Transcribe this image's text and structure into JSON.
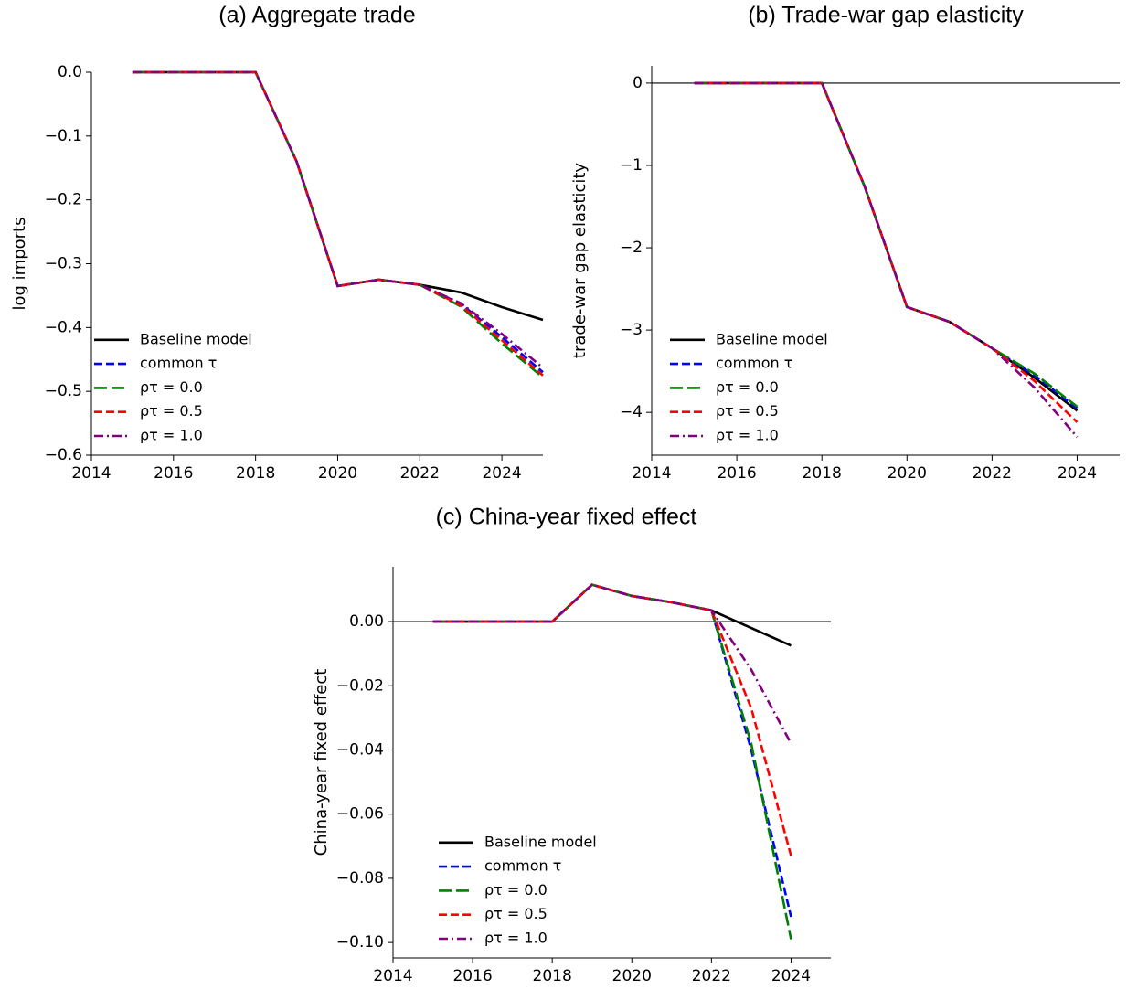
{
  "chart_data": [
    {
      "type": "line",
      "title": "(a) Aggregate trade",
      "ylabel": "log imports",
      "x": [
        2015,
        2016,
        2017,
        2018,
        2019,
        2020,
        2021,
        2022,
        2023,
        2024,
        2025
      ],
      "xlim": [
        2014,
        2025
      ],
      "xticks": [
        2014,
        2016,
        2018,
        2020,
        2022,
        2024
      ],
      "ylim": [
        -0.6,
        0
      ],
      "yticks": [
        {
          "value": 0,
          "label": "0.0"
        },
        {
          "value": -0.1,
          "label": "−0.1"
        },
        {
          "value": -0.2,
          "label": "−0.2"
        },
        {
          "value": -0.3,
          "label": "−0.3"
        },
        {
          "value": -0.4,
          "label": "−0.4"
        },
        {
          "value": -0.5,
          "label": "−0.5"
        },
        {
          "value": -0.6,
          "label": "−0.6"
        }
      ],
      "zero_line": false,
      "legend": "lower left",
      "series": [
        {
          "name": "Baseline model",
          "color": "#000000",
          "dash": "solid",
          "values": [
            0,
            0,
            0,
            0,
            -0.14,
            -0.335,
            -0.325,
            -0.333,
            -0.345,
            -0.368,
            -0.388
          ]
        },
        {
          "name": "common τ",
          "color": "#0000ff",
          "dash": "dashed",
          "values": [
            0,
            0,
            0,
            0,
            -0.14,
            -0.335,
            -0.325,
            -0.333,
            -0.363,
            -0.415,
            -0.47
          ]
        },
        {
          "name": "ρτ = 0.0",
          "color": "#008000",
          "dash": "longdash",
          "values": [
            0,
            0,
            0,
            0,
            -0.14,
            -0.335,
            -0.325,
            -0.333,
            -0.367,
            -0.425,
            -0.478
          ]
        },
        {
          "name": "ρτ = 0.5",
          "color": "#ff0000",
          "dash": "dashed",
          "values": [
            0,
            0,
            0,
            0,
            -0.14,
            -0.335,
            -0.325,
            -0.333,
            -0.365,
            -0.42,
            -0.475
          ]
        },
        {
          "name": "ρτ = 1.0",
          "color": "#800080",
          "dash": "dashdot",
          "values": [
            0,
            0,
            0,
            0,
            -0.14,
            -0.335,
            -0.325,
            -0.333,
            -0.362,
            -0.41,
            -0.463
          ]
        }
      ]
    },
    {
      "type": "line",
      "title": "(b) Trade-war gap elasticity",
      "ylabel": "trade-war gap elasticity",
      "x": [
        2015,
        2016,
        2017,
        2018,
        2019,
        2020,
        2021,
        2022,
        2023,
        2024
      ],
      "xlim": [
        2014,
        2025
      ],
      "xticks": [
        2014,
        2016,
        2018,
        2020,
        2022,
        2024
      ],
      "ylim": [
        -4.52,
        0.21
      ],
      "yticks": [
        0,
        {
          "value": -1,
          "label": "−1"
        },
        {
          "value": -2,
          "label": "−2"
        },
        {
          "value": -3,
          "label": "−3"
        },
        {
          "value": -4,
          "label": "−4"
        }
      ],
      "zero_line": true,
      "legend": "lower left",
      "series": [
        {
          "name": "Baseline model",
          "color": "#000000",
          "dash": "solid",
          "values": [
            0,
            0,
            0,
            0,
            -1.25,
            -2.72,
            -2.9,
            -3.22,
            -3.58,
            -3.98
          ]
        },
        {
          "name": "common τ",
          "color": "#0000ff",
          "dash": "dashed",
          "values": [
            0,
            0,
            0,
            0,
            -1.25,
            -2.72,
            -2.9,
            -3.22,
            -3.55,
            -3.95
          ]
        },
        {
          "name": "ρτ = 0.0",
          "color": "#008000",
          "dash": "longdash",
          "values": [
            0,
            0,
            0,
            0,
            -1.25,
            -2.72,
            -2.9,
            -3.22,
            -3.53,
            -3.93
          ]
        },
        {
          "name": "ρτ = 0.5",
          "color": "#ff0000",
          "dash": "dashed",
          "values": [
            0,
            0,
            0,
            0,
            -1.25,
            -2.72,
            -2.9,
            -3.22,
            -3.62,
            -4.12
          ]
        },
        {
          "name": "ρτ = 1.0",
          "color": "#800080",
          "dash": "dashdot",
          "values": [
            0,
            0,
            0,
            0,
            -1.25,
            -2.72,
            -2.9,
            -3.22,
            -3.7,
            -4.3
          ]
        }
      ]
    },
    {
      "type": "line",
      "title": "(c) China-year fixed effect",
      "ylabel": "China-year fixed effect",
      "x": [
        2015,
        2016,
        2017,
        2018,
        2019,
        2020,
        2021,
        2022,
        2023,
        2024
      ],
      "xlim": [
        2014,
        2025
      ],
      "xticks": [
        2014,
        2016,
        2018,
        2020,
        2022,
        2024
      ],
      "ylim": [
        -0.1048,
        0.0171
      ],
      "yticks": [
        {
          "value": 0,
          "label": "0.00"
        },
        {
          "value": -0.02,
          "label": "−0.02"
        },
        {
          "value": -0.04,
          "label": "−0.04"
        },
        {
          "value": -0.06,
          "label": "−0.06"
        },
        {
          "value": -0.08,
          "label": "−0.08"
        },
        {
          "value": -0.1,
          "label": "−0.10"
        }
      ],
      "zero_line": true,
      "legend": "lower left",
      "series": [
        {
          "name": "Baseline model",
          "color": "#000000",
          "dash": "solid",
          "values": [
            0,
            0,
            0,
            0,
            0.0115,
            0.008,
            0.006,
            0.0035,
            -0.002,
            -0.0075
          ]
        },
        {
          "name": "common τ",
          "color": "#0000ff",
          "dash": "dashed",
          "values": [
            0,
            0,
            0,
            0,
            0.0115,
            0.008,
            0.006,
            0.0035,
            -0.04,
            -0.092
          ]
        },
        {
          "name": "ρτ = 0.0",
          "color": "#008000",
          "dash": "longdash",
          "values": [
            0,
            0,
            0,
            0,
            0.0115,
            0.008,
            0.006,
            0.0035,
            -0.038,
            -0.099
          ]
        },
        {
          "name": "ρτ = 0.5",
          "color": "#ff0000",
          "dash": "dashed",
          "values": [
            0,
            0,
            0,
            0,
            0.0115,
            0.008,
            0.006,
            0.0035,
            -0.027,
            -0.073
          ]
        },
        {
          "name": "ρτ = 1.0",
          "color": "#800080",
          "dash": "dashdot",
          "values": [
            0,
            0,
            0,
            0,
            0.0115,
            0.008,
            0.006,
            0.0035,
            -0.015,
            -0.038
          ]
        }
      ]
    }
  ]
}
